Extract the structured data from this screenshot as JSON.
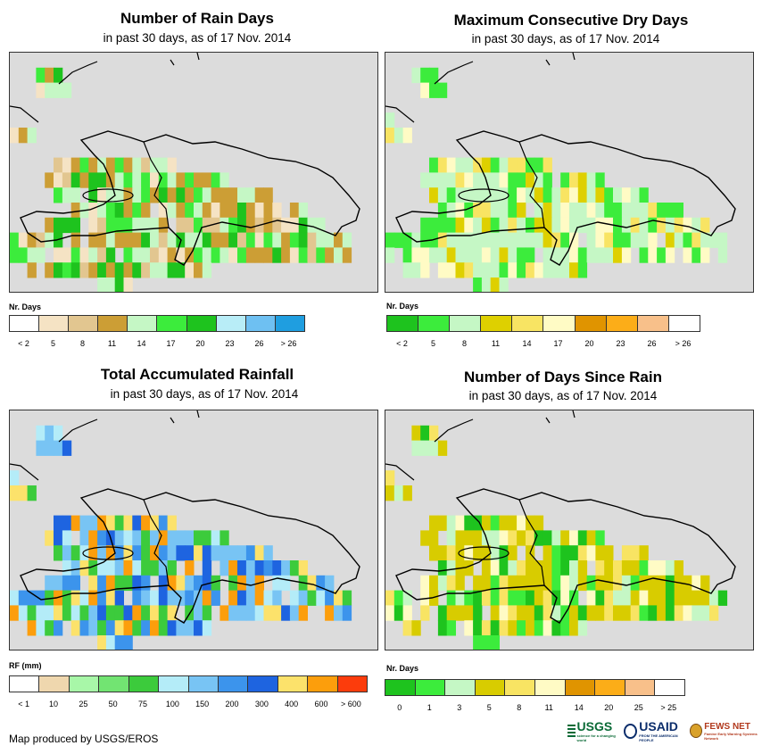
{
  "panels": [
    {
      "id": "rain-days",
      "title": "Number of Rain Days",
      "subtitle": "in past 30 days, as of 17 Nov. 2014",
      "legend_title": "Nr. Days",
      "legend_colors": [
        "#ffffff",
        "#f5e3c4",
        "#e2c690",
        "#cc9e35",
        "#c5f7c5",
        "#3cec3c",
        "#1ec31e",
        "#b8edf7",
        "#6ec0f2",
        "#1f9ee0"
      ],
      "legend_labels": [
        "< 2",
        "5",
        "8",
        "11",
        "14",
        "17",
        "20",
        "23",
        "26",
        "> 26"
      ],
      "legend_label_mode": "boxes"
    },
    {
      "id": "dry-days",
      "title": "Maximum Consecutive Dry Days",
      "subtitle": "in past 30 days, as of 17 Nov. 2014",
      "legend_title": "Nr. Days",
      "legend_colors": [
        "#1ec31e",
        "#3cec3c",
        "#c5f7c5",
        "#ded000",
        "#f8e463",
        "#fffbc5",
        "#e09400",
        "#fcad18",
        "#f8c08a",
        "#ffffff"
      ],
      "legend_labels": [
        "< 2",
        "5",
        "8",
        "11",
        "14",
        "17",
        "20",
        "23",
        "26",
        "> 26"
      ],
      "legend_label_mode": "boxes"
    },
    {
      "id": "rainfall",
      "title": "Total Accumulated Rainfall",
      "subtitle": "in past 30 days, as of 17 Nov. 2014",
      "legend_title": "RF (mm)",
      "legend_colors": [
        "#ffffff",
        "#efd7ae",
        "#a8f7a8",
        "#72e472",
        "#3ccb3c",
        "#b4ecf8",
        "#78c4f4",
        "#3c94ec",
        "#1e64e0",
        "#fce26b",
        "#fc9e0c",
        "#fc3c0c"
      ],
      "legend_labels": [
        "< 1",
        "10",
        "25",
        "50",
        "75",
        "100",
        "150",
        "200",
        "300",
        "400",
        "600",
        "> 600"
      ],
      "legend_label_mode": "boxes"
    },
    {
      "id": "since-rain",
      "title": "Number of Days Since Rain",
      "subtitle": "in past 30 days, as of 17 Nov. 2014",
      "legend_title": "Nr. Days",
      "legend_colors": [
        "#1ec31e",
        "#3cec3c",
        "#c5f7c5",
        "#d8cc00",
        "#f8e463",
        "#fffbc5",
        "#e09400",
        "#fcad18",
        "#f8c08a",
        "#ffffff"
      ],
      "legend_labels": [
        "0",
        "1",
        "3",
        "5",
        "8",
        "11",
        "14",
        "20",
        "25",
        "> 25"
      ],
      "legend_label_mode": "boxes"
    }
  ],
  "footer": "Map produced by USGS/EROS",
  "logos": {
    "usgs": "USGS",
    "usgs_tag": "science for a changing world",
    "usaid": "USAID",
    "usaid_tag": "FROM THE AMERICAN PEOPLE",
    "fewsnet": "FEWS NET",
    "fewsnet_tag": "Famine Early Warning Systems Network"
  }
}
